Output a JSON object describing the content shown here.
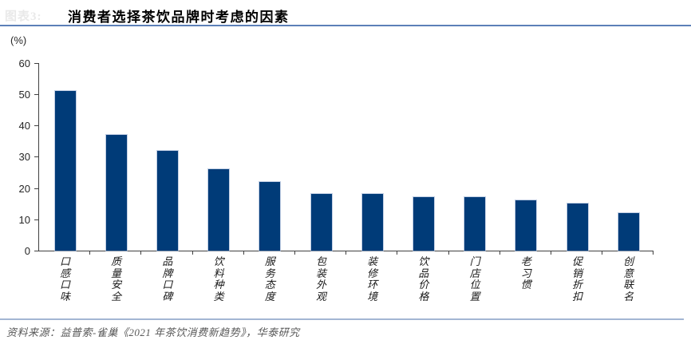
{
  "figure": {
    "faint_label": "图表3:",
    "title": "消费者选择茶饮品牌时考虑的因素"
  },
  "chart_data": {
    "type": "bar",
    "title": "消费者选择茶饮品牌时考虑的因素",
    "unit_label": "(%)",
    "categories": [
      "口感口味",
      "质量安全",
      "品牌口碑",
      "饮料种类",
      "服务态度",
      "包装外观",
      "装修环境",
      "饮品价格",
      "门店位置",
      "老习惯",
      "促销折扣",
      "创意联名"
    ],
    "values": [
      51,
      37,
      32,
      26,
      22,
      18,
      18,
      17,
      17,
      16,
      15,
      12
    ],
    "ylim": [
      0,
      60
    ],
    "yticks": [
      0,
      10,
      20,
      30,
      40,
      50,
      60
    ],
    "xlabel": "",
    "ylabel": "(%)",
    "grid": false,
    "legend": "none",
    "bar_color": "#003B78"
  },
  "footer": {
    "source_text": "资料来源：益普索-雀巢《2021 年茶饮消费新趋势》，华泰研究"
  },
  "colors": {
    "accent_line": "#5C80B8",
    "footer_line": "#A3B6D3",
    "axis": "#404040"
  }
}
